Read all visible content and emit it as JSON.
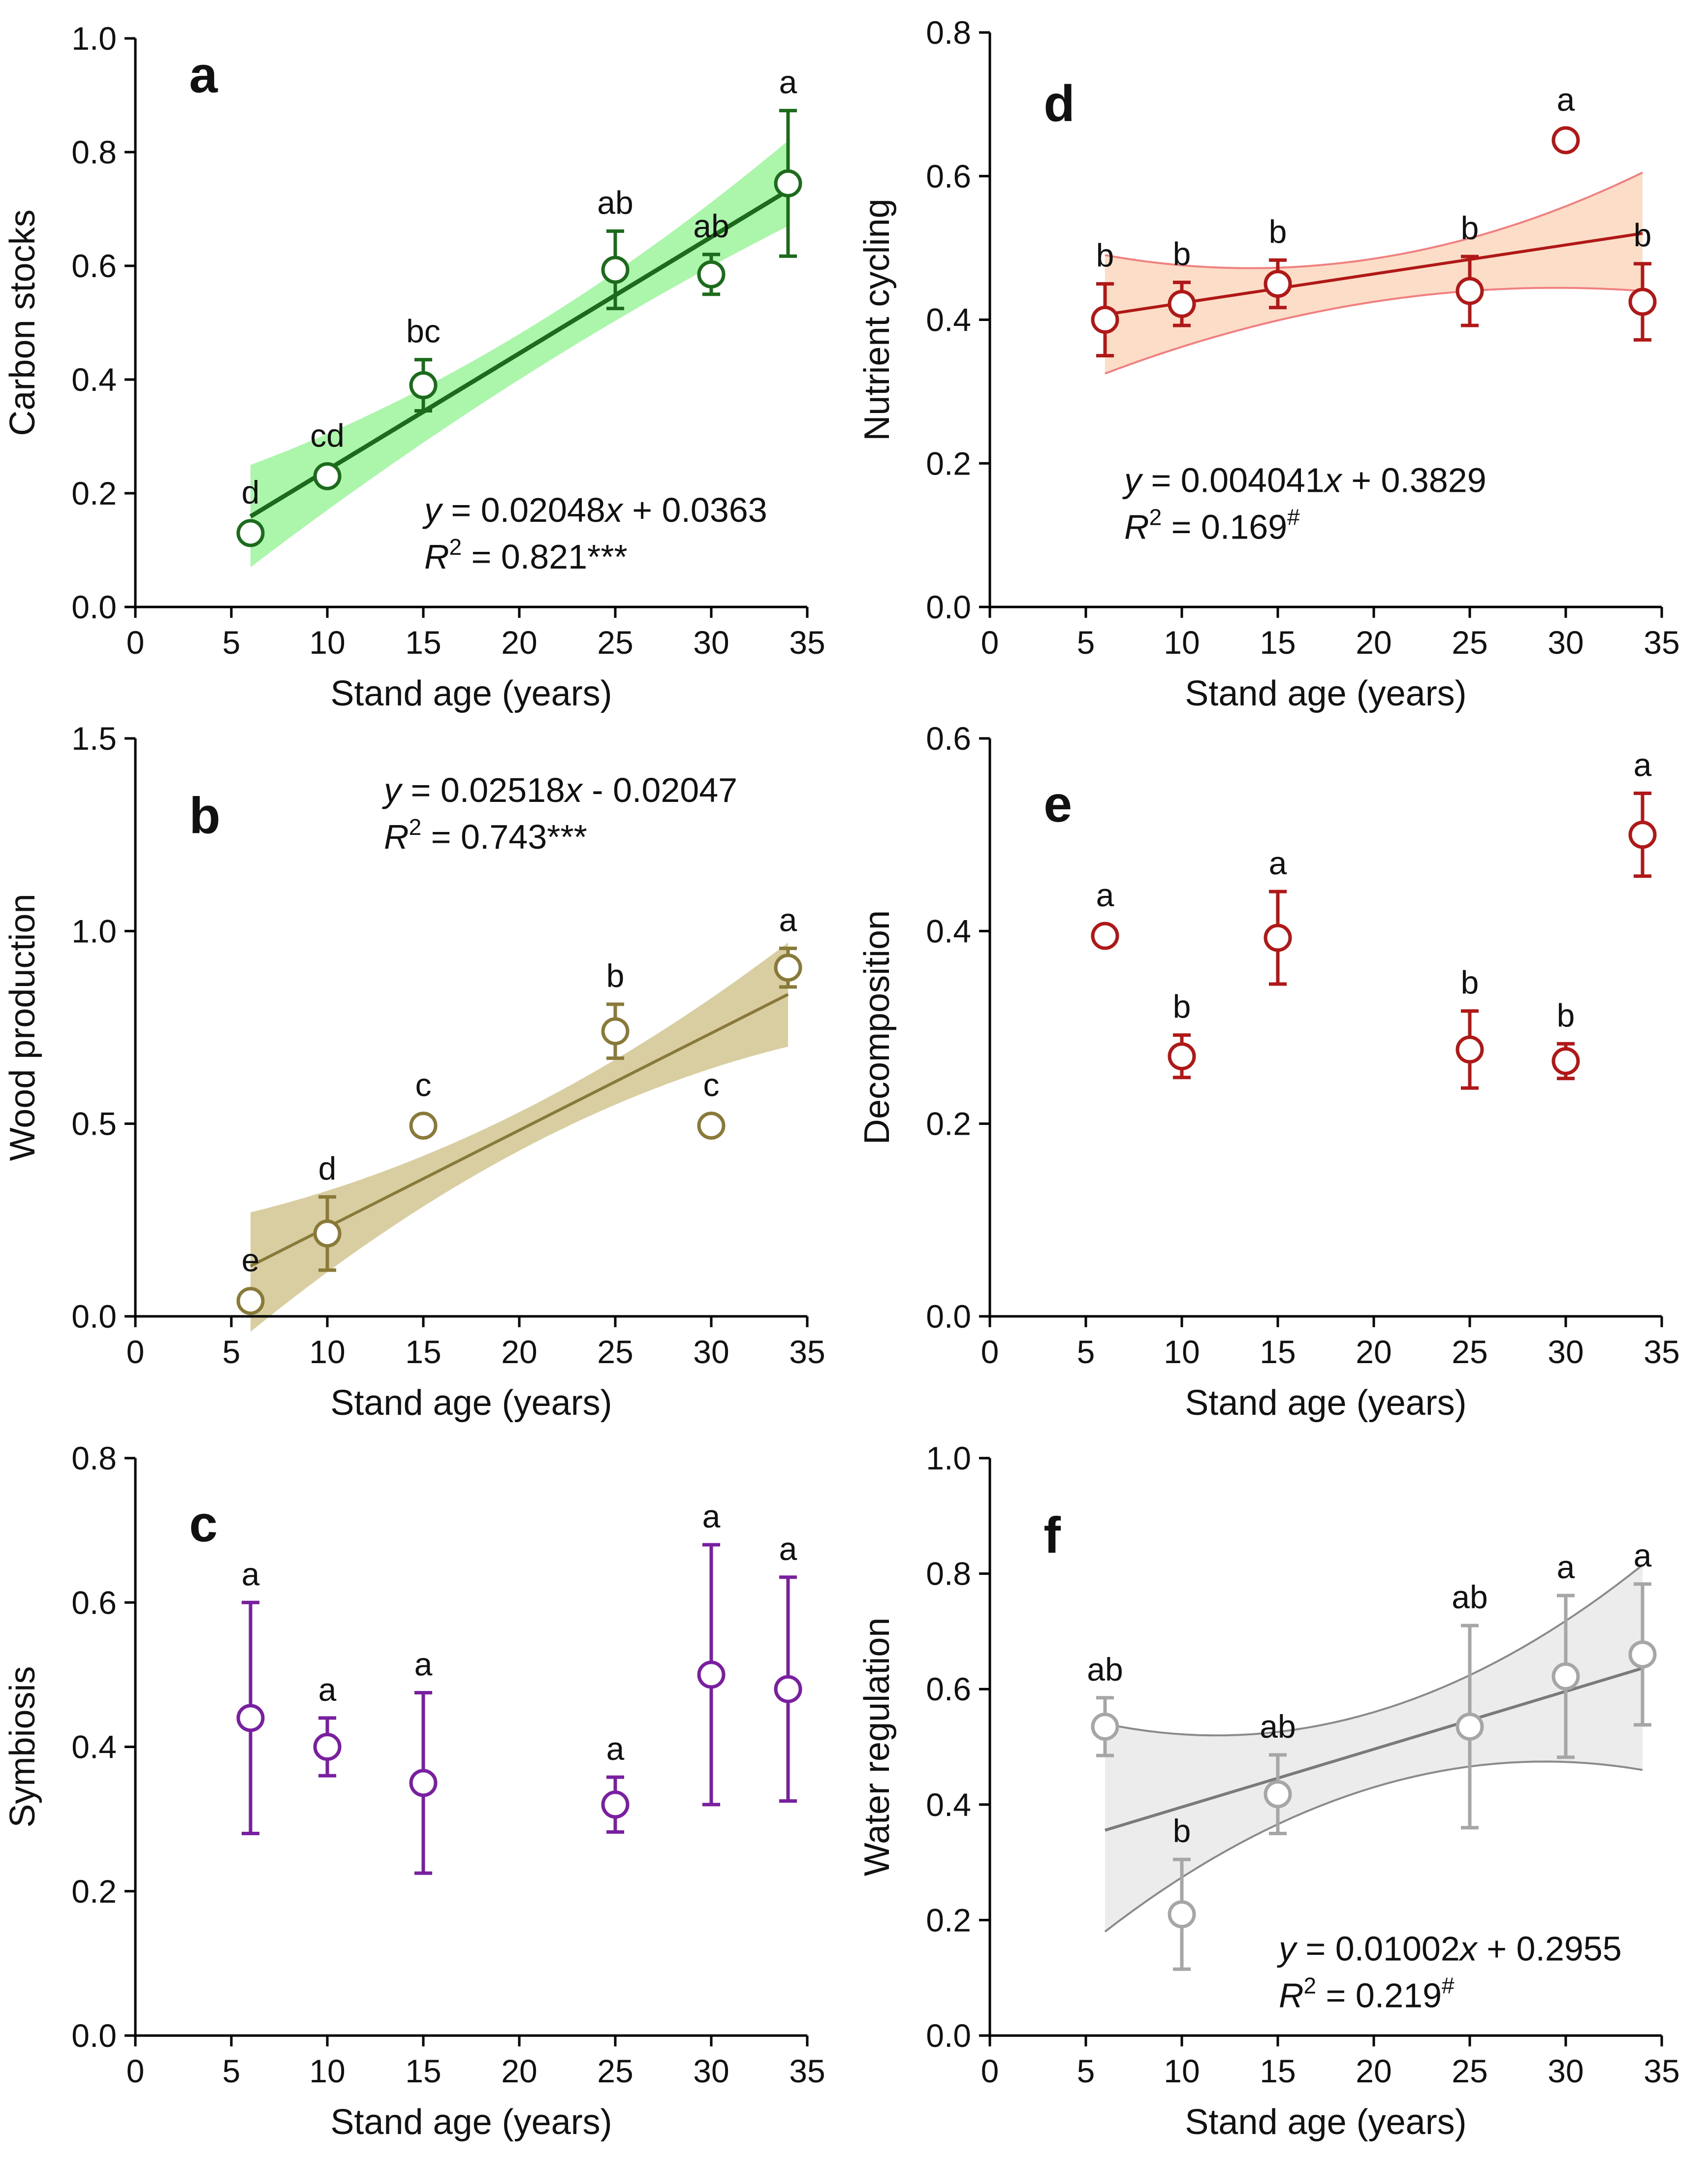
{
  "chart_data": [
    {
      "panel": "a",
      "type": "scatter",
      "title": "",
      "xlabel": "Stand age (years)",
      "ylabel": "Carbon stocks",
      "xlim": [
        0,
        35
      ],
      "ylim": [
        0,
        1.0
      ],
      "xticks": [
        0,
        5,
        10,
        15,
        20,
        25,
        30,
        35
      ],
      "yticks": [
        0.0,
        0.2,
        0.4,
        0.6,
        0.8,
        1.0
      ],
      "xtick_labels": [
        "0",
        "5",
        "10",
        "15",
        "20",
        "25",
        "30",
        "35"
      ],
      "ytick_labels": [
        "0.0",
        "0.2",
        "0.4",
        "0.6",
        "0.8",
        "1.0"
      ],
      "color": "#1c6b1c",
      "band_color": "#66ee66",
      "points": [
        {
          "x": 6,
          "y": 0.13,
          "err": 0.0,
          "label": "d"
        },
        {
          "x": 10,
          "y": 0.23,
          "err": 0.0,
          "label": "cd"
        },
        {
          "x": 15,
          "y": 0.39,
          "err": 0.045,
          "label": "bc"
        },
        {
          "x": 25,
          "y": 0.593,
          "err": 0.068,
          "label": "ab"
        },
        {
          "x": 30,
          "y": 0.585,
          "err": 0.035,
          "label": "ab"
        },
        {
          "x": 34,
          "y": 0.745,
          "err": 0.128,
          "label": "a"
        }
      ],
      "fit": {
        "slope": 0.02048,
        "intercept": 0.0363,
        "x_range": [
          6,
          34
        ],
        "band": [
          [
            6,
            0.07,
            0.25
          ],
          [
            20,
            0.4,
            0.48
          ],
          [
            34,
            0.67,
            0.82
          ]
        ]
      },
      "equation_prefix": "y = 0.02048",
      "equation_suffix": " + 0.0363",
      "r2_value": " = 0.821",
      "r2_sig": "***",
      "sig_superscript": false
    },
    {
      "panel": "b",
      "type": "scatter",
      "title": "",
      "xlabel": "Stand age (years)",
      "ylabel": "Wood production",
      "xlim": [
        0,
        35
      ],
      "ylim": [
        0,
        1.5
      ],
      "xticks": [
        0,
        5,
        10,
        15,
        20,
        25,
        30,
        35
      ],
      "yticks": [
        0.0,
        0.5,
        1.0,
        1.5
      ],
      "xtick_labels": [
        "0",
        "5",
        "10",
        "15",
        "20",
        "25",
        "30",
        "35"
      ],
      "ytick_labels": [
        "0.0",
        "0.5",
        "1.0",
        "1.5"
      ],
      "color": "#8a7a3a",
      "band_color": "#c8b97a",
      "points": [
        {
          "x": 6,
          "y": 0.04,
          "err": 0.0,
          "label": "e"
        },
        {
          "x": 10,
          "y": 0.215,
          "err": 0.095,
          "label": "d"
        },
        {
          "x": 15,
          "y": 0.495,
          "err": 0.0,
          "label": "c"
        },
        {
          "x": 25,
          "y": 0.74,
          "err": 0.07,
          "label": "b"
        },
        {
          "x": 30,
          "y": 0.495,
          "err": 0.0,
          "label": "c"
        },
        {
          "x": 34,
          "y": 0.905,
          "err": 0.05,
          "label": "a"
        }
      ],
      "fit": {
        "slope": 0.02518,
        "intercept": -0.02047,
        "x_range": [
          6,
          34
        ],
        "band": [
          [
            6,
            -0.04,
            0.27
          ],
          [
            20,
            0.43,
            0.53
          ],
          [
            34,
            0.7,
            0.97
          ]
        ]
      },
      "equation_prefix": "y = 0.02518",
      "equation_suffix": " - 0.02047",
      "r2_value": " = 0.743",
      "r2_sig": "***",
      "sig_superscript": false
    },
    {
      "panel": "c",
      "type": "scatter",
      "title": "",
      "xlabel": "Stand age (years)",
      "ylabel": "Symbiosis",
      "xlim": [
        0,
        35
      ],
      "ylim": [
        0,
        0.8
      ],
      "xticks": [
        0,
        5,
        10,
        15,
        20,
        25,
        30,
        35
      ],
      "yticks": [
        0.0,
        0.2,
        0.4,
        0.6,
        0.8
      ],
      "xtick_labels": [
        "0",
        "5",
        "10",
        "15",
        "20",
        "25",
        "30",
        "35"
      ],
      "ytick_labels": [
        "0.0",
        "0.2",
        "0.4",
        "0.6",
        "0.8"
      ],
      "color": "#7a1fa0",
      "band_color": "",
      "points": [
        {
          "x": 6,
          "y": 0.44,
          "err": 0.16,
          "label": "a"
        },
        {
          "x": 10,
          "y": 0.4,
          "err": 0.04,
          "label": "a"
        },
        {
          "x": 15,
          "y": 0.35,
          "err": 0.125,
          "label": "a"
        },
        {
          "x": 25,
          "y": 0.32,
          "err": 0.038,
          "label": "a"
        },
        {
          "x": 30,
          "y": 0.5,
          "err": 0.18,
          "label": "a"
        },
        {
          "x": 34,
          "y": 0.48,
          "err": 0.155,
          "label": "a"
        }
      ],
      "fit": null
    },
    {
      "panel": "d",
      "type": "scatter",
      "title": "",
      "xlabel": "Stand age (years)",
      "ylabel": "Nutrient cycling",
      "xlim": [
        0,
        35
      ],
      "ylim": [
        0,
        0.8
      ],
      "xticks": [
        0,
        5,
        10,
        15,
        20,
        25,
        30,
        35
      ],
      "yticks": [
        0.0,
        0.2,
        0.4,
        0.6,
        0.8
      ],
      "xtick_labels": [
        "0",
        "5",
        "10",
        "15",
        "20",
        "25",
        "30",
        "35"
      ],
      "ytick_labels": [
        "0.0",
        "0.2",
        "0.4",
        "0.6",
        "0.8"
      ],
      "color": "#b01818",
      "band_color": "#fbd3b5",
      "band_edge": "#f08080",
      "points": [
        {
          "x": 6,
          "y": 0.4,
          "err": 0.05,
          "label": "b"
        },
        {
          "x": 10,
          "y": 0.422,
          "err": 0.03,
          "label": "b"
        },
        {
          "x": 15,
          "y": 0.45,
          "err": 0.033,
          "label": "b"
        },
        {
          "x": 25,
          "y": 0.44,
          "err": 0.048,
          "label": "b"
        },
        {
          "x": 30,
          "y": 0.65,
          "err": 0.0,
          "label": "a"
        },
        {
          "x": 34,
          "y": 0.425,
          "err": 0.053,
          "label": "b"
        }
      ],
      "fit": {
        "slope": 0.004041,
        "intercept": 0.3829,
        "x_range": [
          6,
          34
        ],
        "band": [
          [
            6,
            0.325,
            0.49
          ],
          [
            20,
            0.425,
            0.485
          ],
          [
            34,
            0.44,
            0.605
          ]
        ]
      },
      "equation_prefix": "y = 0.004041",
      "equation_suffix": " + 0.3829",
      "r2_value": " = 0.169",
      "r2_sig": "#",
      "sig_superscript": true
    },
    {
      "panel": "e",
      "type": "scatter",
      "title": "",
      "xlabel": "Stand age (years)",
      "ylabel": "Decomposition",
      "xlim": [
        0,
        35
      ],
      "ylim": [
        0,
        0.6
      ],
      "xticks": [
        0,
        5,
        10,
        15,
        20,
        25,
        30,
        35
      ],
      "yticks": [
        0.0,
        0.2,
        0.4,
        0.6
      ],
      "xtick_labels": [
        "0",
        "5",
        "10",
        "15",
        "20",
        "25",
        "30",
        "35"
      ],
      "ytick_labels": [
        "0.0",
        "0.2",
        "0.4",
        "0.6"
      ],
      "color": "#b01818",
      "band_color": "",
      "points": [
        {
          "x": 6,
          "y": 0.395,
          "err": 0.0,
          "label": "a"
        },
        {
          "x": 10,
          "y": 0.27,
          "err": 0.022,
          "label": "b"
        },
        {
          "x": 15,
          "y": 0.393,
          "err": 0.048,
          "label": "a"
        },
        {
          "x": 25,
          "y": 0.277,
          "err": 0.04,
          "label": "b"
        },
        {
          "x": 30,
          "y": 0.265,
          "err": 0.018,
          "label": "b"
        },
        {
          "x": 34,
          "y": 0.5,
          "err": 0.043,
          "label": "a"
        }
      ],
      "fit": null
    },
    {
      "panel": "f",
      "type": "scatter",
      "title": "",
      "xlabel": "Stand age (years)",
      "ylabel": "Water regulation",
      "xlim": [
        0,
        35
      ],
      "ylim": [
        0,
        1.0
      ],
      "xticks": [
        0,
        5,
        10,
        15,
        20,
        25,
        30,
        35
      ],
      "yticks": [
        0.0,
        0.2,
        0.4,
        0.6,
        0.8,
        1.0
      ],
      "xtick_labels": [
        "0",
        "5",
        "10",
        "15",
        "20",
        "25",
        "30",
        "35"
      ],
      "ytick_labels": [
        "0.0",
        "0.2",
        "0.4",
        "0.6",
        "0.8",
        "1.0"
      ],
      "color": "#a6a6a6",
      "line_color": "#7a7a7a",
      "band_color": "#e6e6e6",
      "band_edge": "#8a8a8a",
      "points": [
        {
          "x": 6,
          "y": 0.535,
          "err": 0.05,
          "label": "ab"
        },
        {
          "x": 10,
          "y": 0.21,
          "err": 0.095,
          "label": "b"
        },
        {
          "x": 15,
          "y": 0.418,
          "err": 0.068,
          "label": "ab"
        },
        {
          "x": 25,
          "y": 0.535,
          "err": 0.175,
          "label": "ab"
        },
        {
          "x": 30,
          "y": 0.622,
          "err": 0.14,
          "label": "a"
        },
        {
          "x": 34,
          "y": 0.66,
          "err": 0.122,
          "label": "a"
        }
      ],
      "fit": {
        "slope": 0.01002,
        "intercept": 0.2955,
        "x_range": [
          6,
          34
        ],
        "band": [
          [
            6,
            0.18,
            0.54
          ],
          [
            20,
            0.43,
            0.56
          ],
          [
            34,
            0.46,
            0.815
          ]
        ]
      },
      "equation_prefix": "y = 0.01002",
      "equation_suffix": " + 0.2955",
      "r2_value": " = 0.219",
      "r2_sig": "#",
      "sig_superscript": true
    }
  ]
}
